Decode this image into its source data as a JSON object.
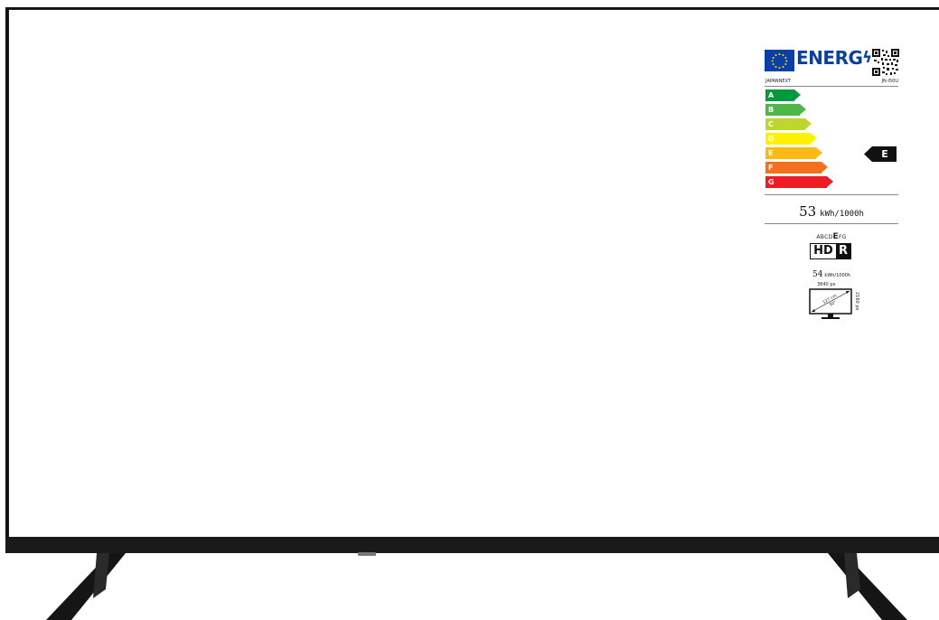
{
  "energy_label": {
    "title": "ENERG",
    "supplier": "JAPANNEXT",
    "model": "JN-i50U",
    "classes": [
      {
        "letter": "A",
        "color": "#009a3e"
      },
      {
        "letter": "B",
        "color": "#4db848"
      },
      {
        "letter": "C",
        "color": "#bed630"
      },
      {
        "letter": "D",
        "color": "#fff200"
      },
      {
        "letter": "E",
        "color": "#fdb913"
      },
      {
        "letter": "F",
        "color": "#f37021"
      },
      {
        "letter": "G",
        "color": "#ed1c24"
      }
    ],
    "rating": "E",
    "consumption_sdr": {
      "value": "53",
      "unit": "kWh/1000h"
    },
    "hdr": {
      "scale_prefix": "ABCD",
      "scale_highlight": "E",
      "scale_suffix": "FG",
      "badge_hd": "HD",
      "badge_r": "R",
      "value": "54",
      "unit": "kWh/1000h"
    },
    "screen": {
      "horizontal_resolution": "3840 px",
      "vertical_resolution": "2160 px",
      "diagonal_cm": "127 cm",
      "diagonal_in": "50\""
    }
  },
  "colors": {
    "eu_blue": "#0b3fa0",
    "eu_star": "#ffdd00",
    "frame": "#111111"
  }
}
